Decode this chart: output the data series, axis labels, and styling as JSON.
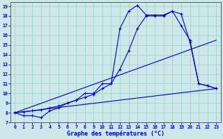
{
  "xlabel": "Graphe des températures (°C)",
  "xlim": [
    -0.5,
    23.5
  ],
  "ylim": [
    7,
    19.4
  ],
  "yticks": [
    7,
    8,
    9,
    10,
    11,
    12,
    13,
    14,
    15,
    16,
    17,
    18,
    19
  ],
  "xticks": [
    0,
    1,
    2,
    3,
    4,
    5,
    6,
    7,
    8,
    9,
    10,
    11,
    12,
    13,
    14,
    15,
    16,
    17,
    18,
    19,
    20,
    21,
    22,
    23
  ],
  "bg_color": "#cce8e8",
  "line_color": "#0000cc",
  "grid_color": "#99cccc",
  "line1_x": [
    0,
    1,
    2,
    3,
    4,
    5,
    6,
    7,
    8,
    9,
    10,
    11,
    12,
    13,
    14,
    15,
    16,
    17,
    18,
    19,
    20,
    21,
    22,
    23
  ],
  "line1_y": [
    8.0,
    7.7,
    7.7,
    7.5,
    8.2,
    8.5,
    9.0,
    9.3,
    10.0,
    10.0,
    11.0,
    11.0,
    16.7,
    18.5,
    19.1,
    18.1,
    18.1,
    18.1,
    18.5,
    18.2,
    15.3,
    11.0,
    10.8,
    10.5
  ],
  "line2_x": [
    0,
    1,
    2,
    3,
    4,
    5,
    6,
    7,
    8,
    9,
    10,
    11,
    12,
    13,
    14,
    15,
    16,
    17,
    18,
    19,
    20,
    21,
    22,
    23
  ],
  "line2_y": [
    8.0,
    8.1,
    8.2,
    8.3,
    8.5,
    8.7,
    9.0,
    9.3,
    9.6,
    9.9,
    10.5,
    11.0,
    12.5,
    14.4,
    16.7,
    18.0,
    18.0,
    18.0,
    18.5,
    17.0,
    15.5,
    11.0,
    10.8,
    10.5
  ],
  "line3_x": [
    0,
    23
  ],
  "line3_y": [
    8.0,
    15.5
  ],
  "line4_x": [
    0,
    23
  ],
  "line4_y": [
    8.0,
    10.5
  ]
}
